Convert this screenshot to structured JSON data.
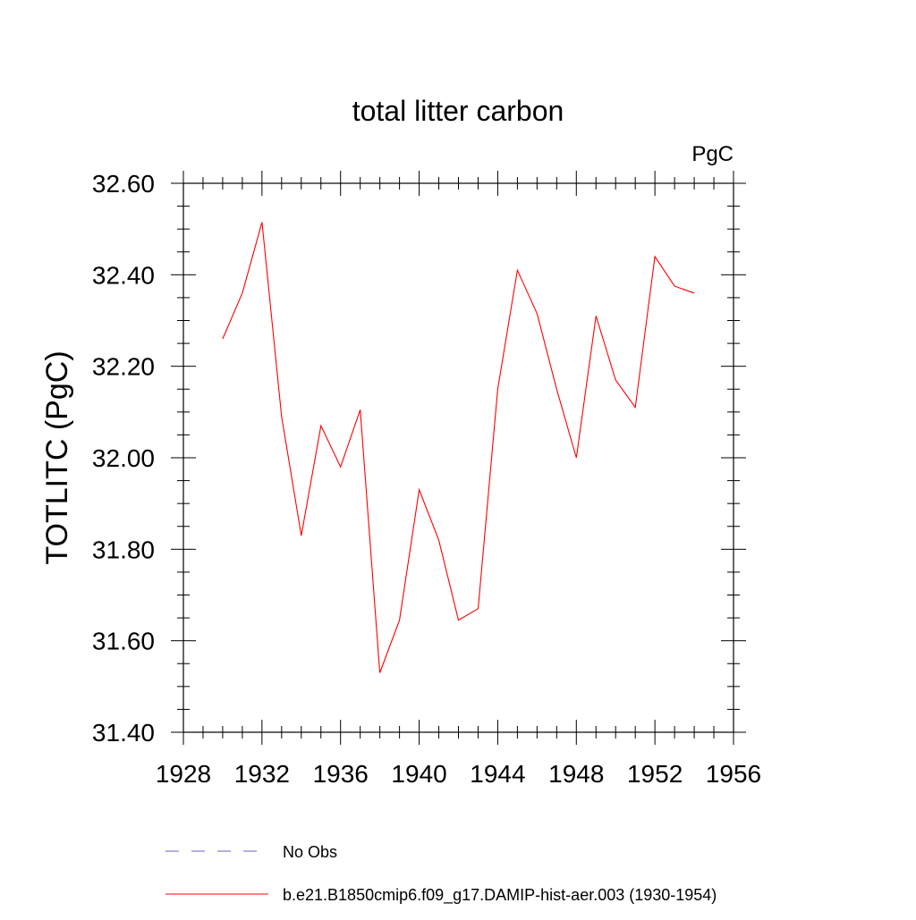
{
  "chart_data": {
    "type": "line",
    "title": "total litter carbon",
    "units_label": "PgC",
    "ylabel": "TOTLITC  (PgC)",
    "xlabel": "",
    "xlim": [
      1928,
      1956
    ],
    "ylim": [
      31.4,
      32.6
    ],
    "xticks": [
      1928,
      1932,
      1936,
      1940,
      1944,
      1948,
      1952,
      1956
    ],
    "yticks": [
      31.4,
      31.6,
      31.8,
      32.0,
      32.2,
      32.4,
      32.6
    ],
    "ytick_labels": [
      "31.40",
      "31.60",
      "31.80",
      "32.00",
      "32.20",
      "32.40",
      "32.60"
    ],
    "grid": false,
    "series": [
      {
        "name": "b.e21.B1850cmip6.f09_g17.DAMIP-hist-aer.003 (1930-1954)",
        "color": "#ff0000",
        "x": [
          1930,
          1931,
          1932,
          1933,
          1934,
          1935,
          1936,
          1937,
          1938,
          1939,
          1940,
          1941,
          1942,
          1943,
          1944,
          1945,
          1946,
          1947,
          1948,
          1949,
          1950,
          1951,
          1952,
          1953,
          1954
        ],
        "y": [
          32.26,
          32.36,
          32.515,
          32.09,
          31.83,
          32.07,
          31.98,
          32.105,
          31.53,
          31.645,
          31.93,
          31.82,
          31.645,
          31.67,
          32.15,
          32.41,
          32.315,
          32.15,
          32.0,
          32.31,
          32.17,
          32.11,
          32.44,
          32.375,
          32.36
        ]
      }
    ],
    "legend": [
      {
        "label": "No Obs",
        "color": "#6666bb",
        "style": "dashed"
      },
      {
        "label": "b.e21.B1850cmip6.f09_g17.DAMIP-hist-aer.003 (1930-1954)",
        "color": "#ff0000",
        "style": "solid"
      }
    ],
    "legend_placement": "bottom"
  }
}
